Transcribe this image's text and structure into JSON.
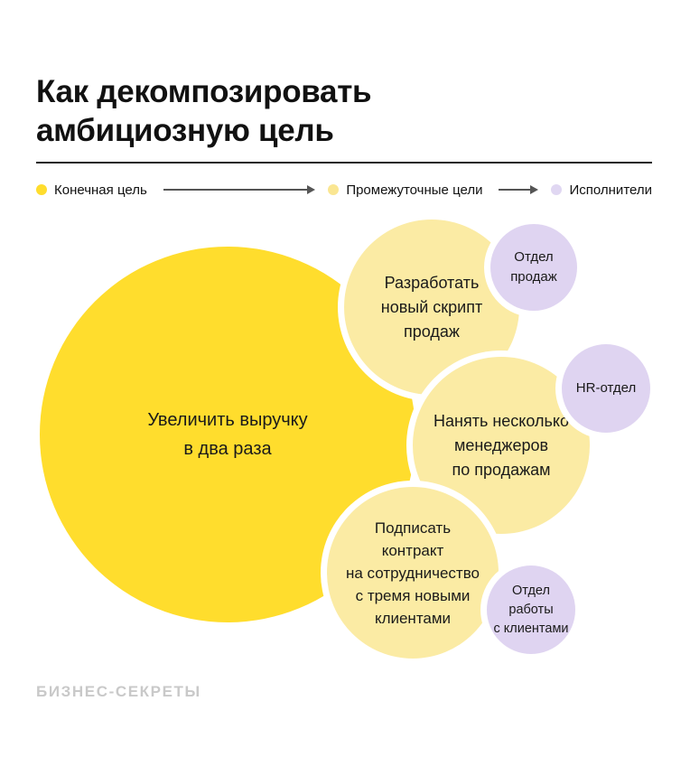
{
  "title": "Как декомпозировать\nамбициозную цель",
  "legend": {
    "items": [
      {
        "label": "Конечная цель",
        "color": "#FFDD2D"
      },
      {
        "label": "Промежуточные цели",
        "color": "#FAE692"
      },
      {
        "label": "Исполнители",
        "color": "#E0D7F2"
      }
    ]
  },
  "diagram": {
    "final_goal": {
      "label": "Увеличить выручку\nв два раза",
      "color": "#FFDD2D"
    },
    "subgoals": [
      {
        "label": "Разработать\nновый скрипт\nпродаж",
        "color": "#FBEBA4",
        "executor": {
          "label": "Отдел\nпродаж",
          "color": "#DFD4F1"
        }
      },
      {
        "label": "Нанять несколько\nменеджеров\nпо продажам",
        "color": "#FBEBA4",
        "executor": {
          "label": "HR-отдел",
          "color": "#DFD4F1"
        }
      },
      {
        "label": "Подписать\nконтракт\nна сотрудничество\nс тремя новыми\nклиентами",
        "color": "#FBEBA4",
        "executor": {
          "label": "Отдел\nработы\nс клиентами",
          "color": "#DFD4F1"
        }
      }
    ]
  },
  "footer": {
    "logo_text": "БИЗНЕС-СЕКРЕТЫ"
  }
}
